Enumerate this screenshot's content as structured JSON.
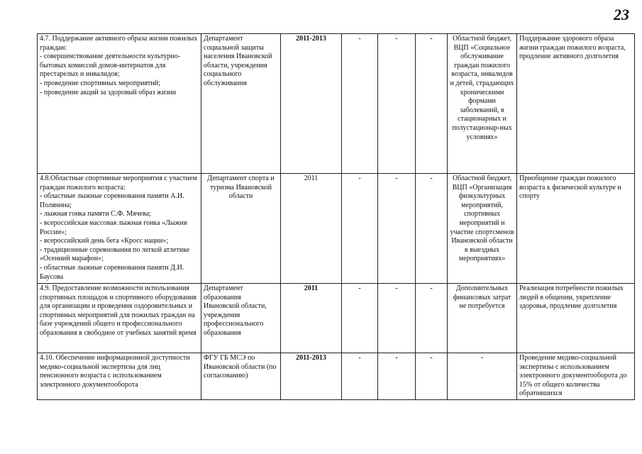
{
  "page_number": "23",
  "rows": [
    {
      "activity": "4.7. Поддержание активного образа жизни пожилых граждан:\n- совершенствование деятельности культурно-бытовых комиссий домов-интернатов для престарелых и инвалидов;\n- проведение спортивных мероприятий;\n- проведение акций за здоровый образ жизни",
      "executor": "Департамент социальной защиты населения Ивановской области, учреждения социального обслуживания",
      "period": "2011-2013",
      "v1": "-",
      "v2": "-",
      "v3": "-",
      "source": "Областной бюджет, ВЦП «Социальное обслуживание граждан пожилого возраста, инвалидов и детей, страдающих хроническими формами заболеваний, в стационарных и полустационар-ных условиях»",
      "result": "Поддержание  здорового образа жизни граждан пожилого возраста, продление активного долголетия"
    },
    {
      "activity": "4.8.Областные спортивные мероприятия с участием  граждан пожилого возраста:\n- областные лыжные соревнования памяти А.И. Полянина;\n- лыжная гонка памяти С.Ф. Мячева;\n- всероссийская массовая лыжная гонка «Лыжня России»;\n- всероссийский день бега «Кросс нации»;\n - традиционные соревнования по легкой атлетике «Осенний марафон»;\n- областные лыжные соревнования памяти Д.И. Баусова",
      "executor": "Департамент спорта и туризма Ивановской области",
      "period": "2011",
      "v1": "-",
      "v2": "-",
      "v3": "-",
      "source": "Областной бюджет, ВЦП «Организация физкультурных мероприятий, спортивных мероприятий и участие спортсменов Ивановской области в выездных мероприятиях»",
      "result": "Приобщение  граждан пожилого возраста к физической культуре и спорту"
    },
    {
      "activity": "4.9. Предоставление возможности использования спортивных  площадок и спортивного оборудования для организации и проведения оздоровительных и спортивных мероприятий для пожилых граждан на базе учреждений общего и профессионального образования в свободное от учебных занятий время",
      "executor": "Департамент образования Ивановской области, учреждения профессионального образования",
      "period": "2011",
      "v1": "-",
      "v2": "-",
      "v3": "-",
      "source": "Дополнительных финансовых затрат не потребуется",
      "result": "Реализация потребности пожилых людей в общении, укрепление здоровья, продление долголетия"
    },
    {
      "activity": "4.10. Обеспечение информационной доступности медико-социальной экспертизы для лиц пенсионного возраста с использованием электронного документооборота",
      "executor": "ФГУ ГБ МСЭ по Ивановской области (по согласованию)",
      "period": "2011-2013",
      "v1": "-",
      "v2": "-",
      "v3": "-",
      "source": "-",
      "result": "Проведение медико-социальной экспертизы с использованием электронного документооборота до 15% от общего количества обратившихся"
    }
  ]
}
